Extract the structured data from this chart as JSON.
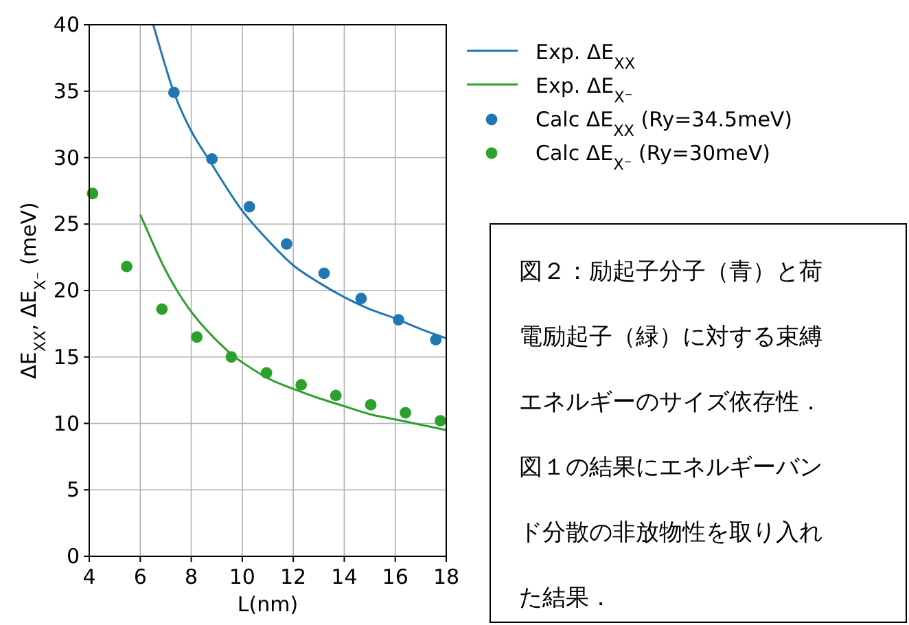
{
  "chart_data": {
    "type": "scatter",
    "xlabel": "L(nm)",
    "ylabel": "ΔE$_{XX}$, ΔE$_{X⁻}$ (meV)",
    "xlim": [
      4,
      18
    ],
    "ylim": [
      0,
      40
    ],
    "xticks": [
      4,
      6,
      8,
      10,
      12,
      14,
      16,
      18
    ],
    "yticks": [
      0,
      5,
      10,
      15,
      20,
      25,
      30,
      35,
      40
    ],
    "grid": true,
    "legend": "right",
    "marker": "circle",
    "line_style": "solid",
    "series": [
      {
        "name": "Exp. ΔE$_{XX}$",
        "type": "line",
        "marker": "none",
        "color": "#1f77b4",
        "x": [
          6.51,
          7,
          7.32,
          8,
          8.81,
          9,
          10,
          11,
          12,
          13,
          14,
          15,
          16,
          17,
          18
        ],
        "values": [
          40,
          36.8,
          34.9,
          32.0,
          29.5,
          28.9,
          26.0,
          23.8,
          21.9,
          20.6,
          19.5,
          18.6,
          17.9,
          17.1,
          16.4
        ]
      },
      {
        "name": "Exp. ΔE$_{X⁻}$",
        "type": "line",
        "marker": "none",
        "color": "#2ca02c",
        "x": [
          6,
          7,
          8,
          9.57,
          10,
          11,
          12,
          13,
          14,
          15,
          16,
          17,
          18
        ],
        "values": [
          25.7,
          21.5,
          18.4,
          15.2,
          14.6,
          13.4,
          12.6,
          11.9,
          11.3,
          10.7,
          10.3,
          9.9,
          9.5
        ]
      },
      {
        "name": "Calc ΔE$_{XX}$ (Ry=34.5meV)",
        "color": "#1f77b4",
        "x": [
          7.32,
          8.81,
          10.28,
          11.74,
          13.21,
          14.66,
          16.13,
          17.59
        ],
        "values": [
          34.9,
          29.9,
          26.3,
          23.5,
          21.3,
          19.4,
          17.8,
          16.3
        ]
      },
      {
        "name": "Calc ΔE$_{X⁻}$ (Ry=30meV)",
        "color": "#2ca02c",
        "x": [
          4.13,
          5.47,
          6.85,
          8.22,
          9.57,
          10.95,
          12.31,
          13.67,
          15.04,
          16.4,
          17.77
        ],
        "values": [
          27.3,
          21.8,
          18.6,
          16.5,
          15.0,
          13.8,
          12.9,
          12.1,
          11.4,
          10.8,
          10.2
        ]
      }
    ],
    "annotations": [
      "図２：励起子分子（青）と荷電励起子（緑）に対する束縛エネルギーのサイズ依存性．図１の結果にエネルギーバンド分散の非放物性を取り入れた結果．"
    ]
  }
}
